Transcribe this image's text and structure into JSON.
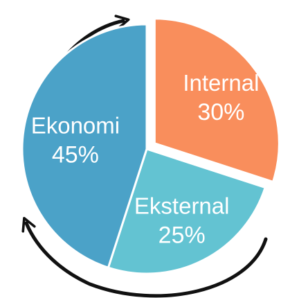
{
  "chart_data": {
    "type": "pie",
    "title": "",
    "slices": [
      {
        "label": "Internal",
        "value_label": "30%",
        "value": 30,
        "color": "#f98e5c"
      },
      {
        "label": "Eksternal",
        "value_label": "25%",
        "value": 25,
        "color": "#63c3d2"
      },
      {
        "label": "Ekonomi",
        "value_label": "45%",
        "value": 45,
        "color": "#4ba2c8"
      }
    ],
    "exploded_slice": "Internal",
    "cycle_arrows": 2,
    "legend": "none"
  }
}
